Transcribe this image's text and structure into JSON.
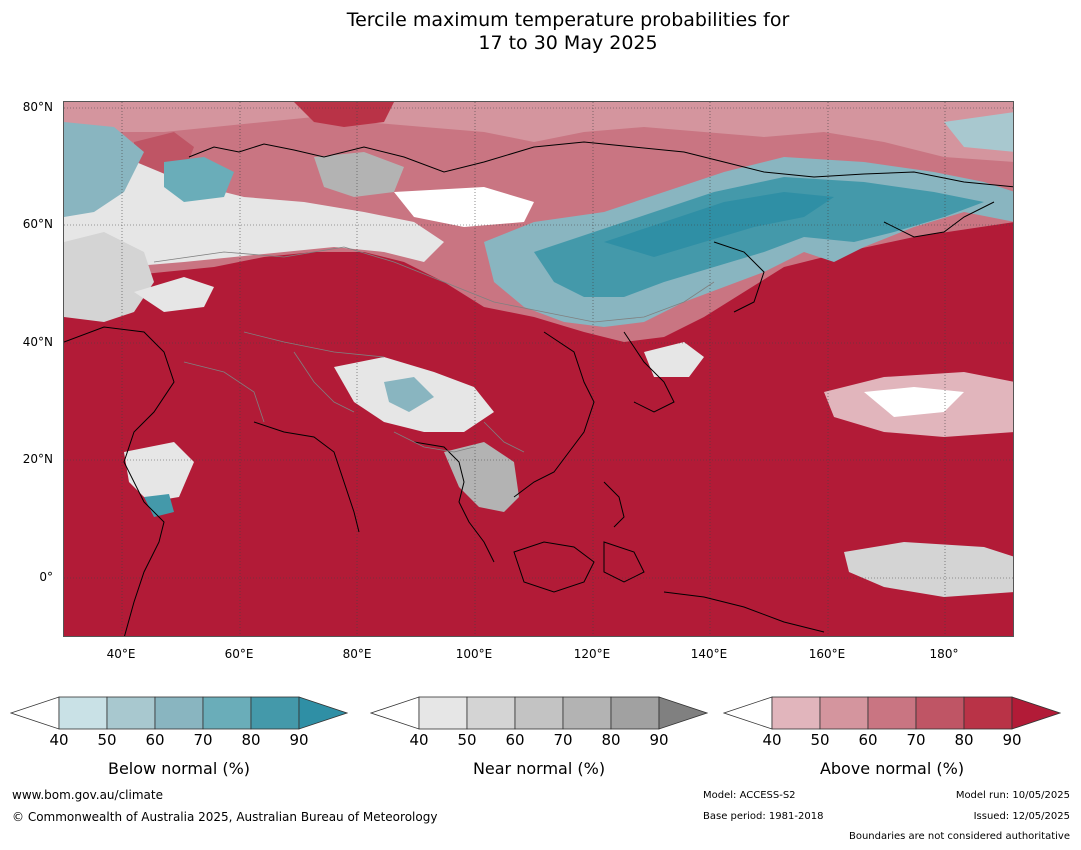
{
  "title": {
    "line1": "Tercile maximum temperature probabilities for",
    "line2": "17 to 30 May 2025"
  },
  "map": {
    "lat_labels": [
      "80°N",
      "60°N",
      "40°N",
      "20°N",
      "0°"
    ],
    "lon_labels": [
      "40°E",
      "60°E",
      "80°E",
      "100°E",
      "120°E",
      "140°E",
      "160°E",
      "180°"
    ],
    "colors": {
      "land_missing": "#ffffff",
      "coast": "#000000",
      "border": "#808080"
    }
  },
  "colorbars": [
    {
      "title": "Below normal (%)",
      "ticks": [
        "40",
        "50",
        "60",
        "70",
        "80",
        "90"
      ],
      "colors": [
        "#c9e1e6",
        "#a8c8cf",
        "#89b5c0",
        "#6aadb9",
        "#4499aa",
        "#2f8fa5"
      ]
    },
    {
      "title": "Near normal (%)",
      "ticks": [
        "40",
        "50",
        "60",
        "70",
        "80",
        "90"
      ],
      "colors": [
        "#e6e6e6",
        "#d4d4d4",
        "#c3c3c3",
        "#b3b3b3",
        "#a1a1a1",
        "#808080"
      ]
    },
    {
      "title": "Above normal (%)",
      "ticks": [
        "40",
        "50",
        "60",
        "70",
        "80",
        "90"
      ],
      "colors": [
        "#e1b5bc",
        "#d4959e",
        "#c97582",
        "#bf5565",
        "#b93347",
        "#b21b37"
      ]
    }
  ],
  "footer": {
    "website": "www.bom.gov.au/climate",
    "copyright": "© Commonwealth of Australia 2025, Australian Bureau of Meteorology",
    "model": "Model: ACCESS-S2",
    "base_period": "Base period: 1981-2018",
    "model_run": "Model run: 10/05/2025",
    "issued": "Issued: 12/05/2025",
    "disclaimer": "Boundaries are not considered authoritative"
  }
}
